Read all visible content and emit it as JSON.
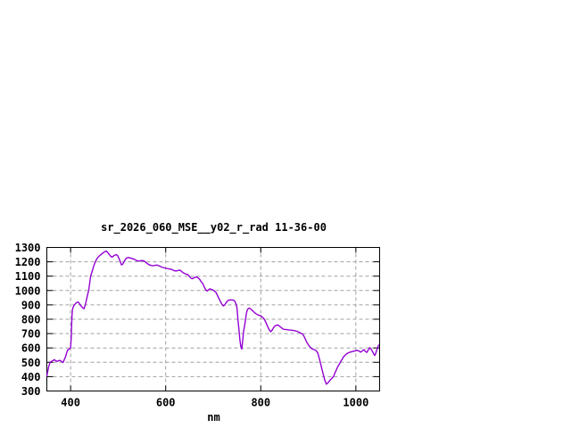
{
  "page": {
    "background": "#ffffff",
    "text_color": "#000000"
  },
  "chart_data": {
    "type": "line",
    "title": "sr_2026_060_MSE__y02_r_rad 11-36-00",
    "xlabel": "nm",
    "ylabel": "",
    "xlim": [
      350,
      1050
    ],
    "ylim": [
      300,
      1300
    ],
    "x_ticks": [
      400,
      600,
      800,
      1000
    ],
    "y_ticks": [
      300,
      400,
      500,
      600,
      700,
      800,
      900,
      1000,
      1100,
      1200,
      1300
    ],
    "grid": true,
    "legend_position": "none",
    "colors": {
      "line": "#9400d3",
      "grid": "#a0a0a0",
      "border": "#000000"
    },
    "series": [
      {
        "name": "sr_2026_060_MSE__y02_r_rad",
        "color": "#9400d3",
        "points": [
          [
            350,
            405
          ],
          [
            352,
            440
          ],
          [
            354,
            470
          ],
          [
            356,
            492
          ],
          [
            358,
            503
          ],
          [
            360,
            507
          ],
          [
            363,
            512
          ],
          [
            366,
            518
          ],
          [
            369,
            510
          ],
          [
            372,
            506
          ],
          [
            375,
            512
          ],
          [
            378,
            513
          ],
          [
            381,
            505
          ],
          [
            384,
            498
          ],
          [
            387,
            520
          ],
          [
            390,
            545
          ],
          [
            392,
            570
          ],
          [
            394,
            586
          ],
          [
            397,
            592
          ],
          [
            400,
            600
          ],
          [
            401,
            655
          ],
          [
            402,
            745
          ],
          [
            403,
            825
          ],
          [
            404,
            870
          ],
          [
            406,
            888
          ],
          [
            408,
            900
          ],
          [
            410,
            908
          ],
          [
            412,
            914
          ],
          [
            414,
            918
          ],
          [
            416,
            920
          ],
          [
            418,
            912
          ],
          [
            420,
            902
          ],
          [
            422,
            892
          ],
          [
            425,
            880
          ],
          [
            428,
            873
          ],
          [
            430,
            890
          ],
          [
            432,
            915
          ],
          [
            435,
            960
          ],
          [
            438,
            1000
          ],
          [
            440,
            1050
          ],
          [
            442,
            1097
          ],
          [
            444,
            1120
          ],
          [
            446,
            1142
          ],
          [
            449,
            1175
          ],
          [
            452,
            1200
          ],
          [
            456,
            1225
          ],
          [
            460,
            1240
          ],
          [
            463,
            1248
          ],
          [
            466,
            1256
          ],
          [
            469,
            1264
          ],
          [
            472,
            1270
          ],
          [
            475,
            1275
          ],
          [
            478,
            1265
          ],
          [
            481,
            1252
          ],
          [
            484,
            1240
          ],
          [
            487,
            1232
          ],
          [
            490,
            1240
          ],
          [
            493,
            1246
          ],
          [
            496,
            1250
          ],
          [
            499,
            1242
          ],
          [
            502,
            1222
          ],
          [
            505,
            1196
          ],
          [
            507,
            1178
          ],
          [
            510,
            1186
          ],
          [
            513,
            1205
          ],
          [
            516,
            1222
          ],
          [
            519,
            1228
          ],
          [
            522,
            1230
          ],
          [
            526,
            1226
          ],
          [
            530,
            1222
          ],
          [
            534,
            1218
          ],
          [
            538,
            1210
          ],
          [
            542,
            1205
          ],
          [
            546,
            1206
          ],
          [
            550,
            1209
          ],
          [
            554,
            1207
          ],
          [
            558,
            1197
          ],
          [
            562,
            1186
          ],
          [
            566,
            1178
          ],
          [
            570,
            1174
          ],
          [
            574,
            1173
          ],
          [
            578,
            1175
          ],
          [
            582,
            1177
          ],
          [
            586,
            1172
          ],
          [
            590,
            1166
          ],
          [
            594,
            1160
          ],
          [
            598,
            1157
          ],
          [
            602,
            1154
          ],
          [
            606,
            1151
          ],
          [
            610,
            1149
          ],
          [
            614,
            1145
          ],
          [
            618,
            1138
          ],
          [
            622,
            1136
          ],
          [
            626,
            1140
          ],
          [
            630,
            1142
          ],
          [
            634,
            1131
          ],
          [
            638,
            1121
          ],
          [
            642,
            1115
          ],
          [
            646,
            1112
          ],
          [
            650,
            1098
          ],
          [
            653,
            1086
          ],
          [
            656,
            1082
          ],
          [
            659,
            1088
          ],
          [
            662,
            1092
          ],
          [
            665,
            1095
          ],
          [
            668,
            1088
          ],
          [
            671,
            1080
          ],
          [
            674,
            1065
          ],
          [
            678,
            1048
          ],
          [
            681,
            1025
          ],
          [
            684,
            1006
          ],
          [
            687,
            996
          ],
          [
            690,
            1005
          ],
          [
            693,
            1012
          ],
          [
            696,
            1008
          ],
          [
            699,
            1005
          ],
          [
            703,
            995
          ],
          [
            706,
            986
          ],
          [
            709,
            965
          ],
          [
            712,
            944
          ],
          [
            715,
            925
          ],
          [
            718,
            905
          ],
          [
            721,
            893
          ],
          [
            724,
            898
          ],
          [
            727,
            915
          ],
          [
            730,
            928
          ],
          [
            733,
            933
          ],
          [
            736,
            935
          ],
          [
            739,
            934
          ],
          [
            742,
            933
          ],
          [
            745,
            928
          ],
          [
            748,
            905
          ],
          [
            750,
            881
          ],
          [
            752,
            798
          ],
          [
            754,
            730
          ],
          [
            756,
            660
          ],
          [
            758,
            610
          ],
          [
            760,
            592
          ],
          [
            762,
            650
          ],
          [
            764,
            720
          ],
          [
            766,
            756
          ],
          [
            768,
            800
          ],
          [
            770,
            845
          ],
          [
            772,
            868
          ],
          [
            774,
            875
          ],
          [
            776,
            877
          ],
          [
            779,
            870
          ],
          [
            782,
            862
          ],
          [
            785,
            852
          ],
          [
            788,
            843
          ],
          [
            791,
            836
          ],
          [
            794,
            830
          ],
          [
            797,
            827
          ],
          [
            800,
            824
          ],
          [
            803,
            815
          ],
          [
            806,
            806
          ],
          [
            809,
            790
          ],
          [
            812,
            768
          ],
          [
            815,
            745
          ],
          [
            818,
            725
          ],
          [
            821,
            713
          ],
          [
            824,
            725
          ],
          [
            827,
            742
          ],
          [
            830,
            754
          ],
          [
            833,
            758
          ],
          [
            836,
            760
          ],
          [
            839,
            752
          ],
          [
            842,
            745
          ],
          [
            845,
            736
          ],
          [
            848,
            730
          ],
          [
            852,
            729
          ],
          [
            856,
            727
          ],
          [
            860,
            725
          ],
          [
            864,
            724
          ],
          [
            868,
            722
          ],
          [
            872,
            720
          ],
          [
            876,
            716
          ],
          [
            880,
            710
          ],
          [
            884,
            703
          ],
          [
            888,
            697
          ],
          [
            892,
            675
          ],
          [
            896,
            645
          ],
          [
            900,
            622
          ],
          [
            904,
            605
          ],
          [
            908,
            594
          ],
          [
            912,
            588
          ],
          [
            916,
            583
          ],
          [
            920,
            565
          ],
          [
            924,
            515
          ],
          [
            928,
            460
          ],
          [
            932,
            408
          ],
          [
            935,
            372
          ],
          [
            938,
            348
          ],
          [
            941,
            355
          ],
          [
            944,
            368
          ],
          [
            947,
            380
          ],
          [
            950,
            390
          ],
          [
            953,
            400
          ],
          [
            956,
            425
          ],
          [
            959,
            448
          ],
          [
            962,
            470
          ],
          [
            965,
            486
          ],
          [
            968,
            505
          ],
          [
            971,
            520
          ],
          [
            974,
            538
          ],
          [
            977,
            548
          ],
          [
            980,
            558
          ],
          [
            983,
            564
          ],
          [
            986,
            569
          ],
          [
            990,
            572
          ],
          [
            994,
            576
          ],
          [
            998,
            579
          ],
          [
            1002,
            583
          ],
          [
            1006,
            580
          ],
          [
            1010,
            571
          ],
          [
            1014,
            580
          ],
          [
            1017,
            589
          ],
          [
            1020,
            575
          ],
          [
            1023,
            569
          ],
          [
            1026,
            585
          ],
          [
            1029,
            602
          ],
          [
            1032,
            592
          ],
          [
            1035,
            575
          ],
          [
            1038,
            555
          ],
          [
            1040,
            548
          ],
          [
            1043,
            575
          ],
          [
            1046,
            605
          ],
          [
            1048,
            620
          ]
        ]
      }
    ]
  }
}
